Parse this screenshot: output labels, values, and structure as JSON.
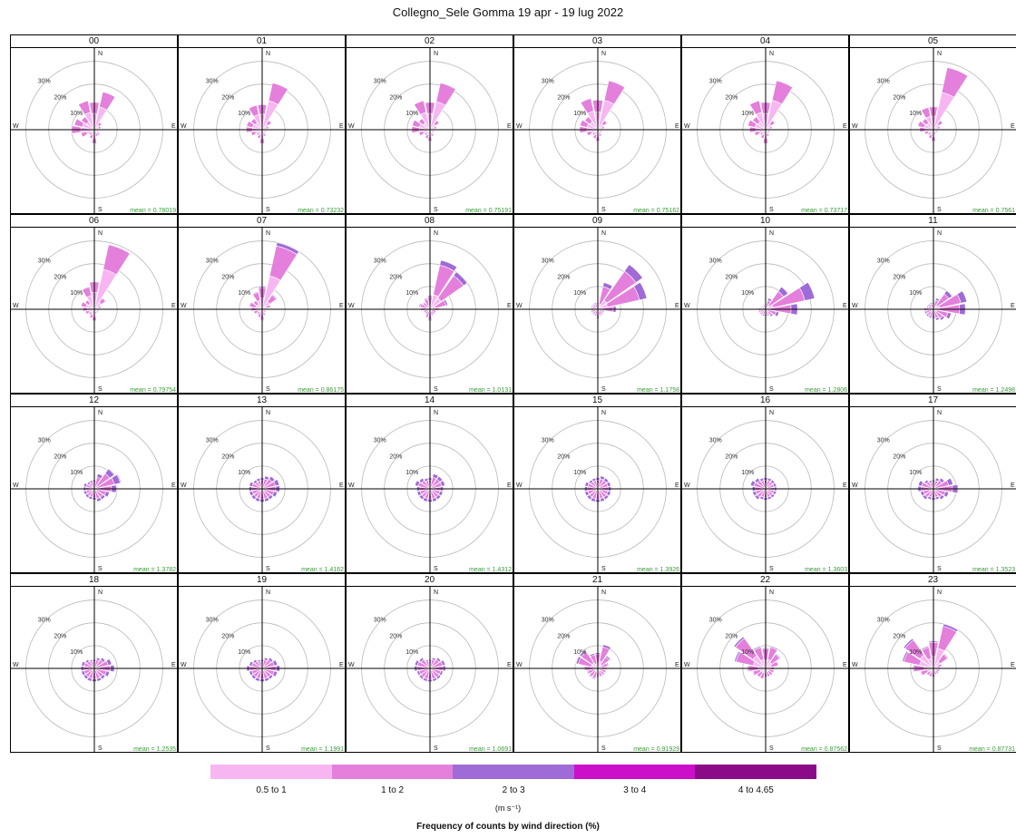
{
  "chart_data": {
    "type": "wind-rose",
    "title": "Collegno_Sele Gomma   19 apr - 19 lug 2022",
    "footer": "Frequency of counts by wind direction (%)",
    "units": "(m s⁻¹)",
    "directions": [
      "N",
      "NNE",
      "NE",
      "ENE",
      "E",
      "ESE",
      "SE",
      "SSE",
      "S",
      "SSW",
      "SW",
      "WSW",
      "W",
      "WNW",
      "NW",
      "NNW"
    ],
    "compass": [
      "N",
      "E",
      "S",
      "W"
    ],
    "rings": [
      10,
      20,
      30
    ],
    "ring_labels": [
      "10%",
      "20%",
      "30%"
    ],
    "axis_max": 35,
    "bins": [
      {
        "label": "0.5 to 1",
        "color": "#f7b6f2"
      },
      {
        "label": "1 to 2",
        "color": "#e47fdc"
      },
      {
        "label": "2 to 3",
        "color": "#9f6bd6"
      },
      {
        "label": "3 to 4",
        "color": "#cc0fc9"
      },
      {
        "label": "4 to 4.65",
        "color": "#8b0a87"
      }
    ],
    "panels": [
      {
        "hour": "00",
        "mean": "mean = 0.78019",
        "totals": [
          12,
          17,
          4,
          3,
          2,
          2,
          3,
          3,
          6,
          4,
          3,
          6,
          10,
          9,
          7,
          13
        ],
        "split": [
          0.6,
          0.4,
          0,
          0,
          0
        ]
      },
      {
        "hour": "01",
        "mean": "mean = 0.73232",
        "totals": [
          11,
          21,
          5,
          3,
          2,
          2,
          2,
          3,
          6,
          4,
          3,
          5,
          7,
          7,
          6,
          11
        ],
        "split": [
          0.62,
          0.38,
          0,
          0,
          0
        ]
      },
      {
        "hour": "02",
        "mean": "mean = 0.75191",
        "totals": [
          12,
          21,
          5,
          3,
          2,
          2,
          2,
          3,
          5,
          4,
          3,
          5,
          8,
          8,
          6,
          13
        ],
        "split": [
          0.6,
          0.4,
          0,
          0,
          0
        ]
      },
      {
        "hour": "03",
        "mean": "mean = 0.75162",
        "totals": [
          13,
          22,
          5,
          3,
          2,
          2,
          2,
          3,
          5,
          4,
          3,
          5,
          8,
          8,
          7,
          14
        ],
        "split": [
          0.6,
          0.4,
          0,
          0,
          0
        ]
      },
      {
        "hour": "04",
        "mean": "mean = 0.73717",
        "totals": [
          12,
          22,
          5,
          3,
          2,
          2,
          2,
          3,
          6,
          4,
          3,
          5,
          7,
          8,
          7,
          13
        ],
        "split": [
          0.6,
          0.4,
          0,
          0,
          0
        ]
      },
      {
        "hour": "05",
        "mean": "mean = 0.7561",
        "totals": [
          10,
          28,
          5,
          3,
          2,
          2,
          2,
          2,
          5,
          4,
          3,
          4,
          6,
          7,
          6,
          10
        ],
        "split": [
          0.6,
          0.4,
          0,
          0,
          0
        ]
      },
      {
        "hour": "06",
        "mean": "mean = 0.79754",
        "totals": [
          12,
          29,
          6,
          3,
          2,
          2,
          2,
          2,
          5,
          4,
          3,
          4,
          5,
          6,
          5,
          10
        ],
        "split": [
          0.62,
          0.38,
          0,
          0,
          0
        ]
      },
      {
        "hour": "07",
        "mean": "mean = 0.86175",
        "totals": [
          10,
          30,
          8,
          4,
          2,
          2,
          2,
          3,
          5,
          4,
          3,
          4,
          5,
          6,
          5,
          8
        ],
        "split": [
          0.5,
          0.45,
          0.05,
          0,
          0
        ]
      },
      {
        "hour": "08",
        "mean": "mean = 1.0131",
        "totals": [
          6,
          22,
          20,
          8,
          4,
          3,
          3,
          3,
          5,
          4,
          3,
          3,
          4,
          5,
          4,
          5
        ],
        "split": [
          0.3,
          0.6,
          0.1,
          0,
          0
        ]
      },
      {
        "hour": "09",
        "mean": "mean = 1.1758",
        "totals": [
          3,
          12,
          24,
          22,
          8,
          3,
          3,
          3,
          4,
          3,
          3,
          3,
          3,
          3,
          3,
          3
        ],
        "split": [
          0.2,
          0.65,
          0.15,
          0,
          0
        ]
      },
      {
        "hour": "10",
        "mean": "mean = 1.2806",
        "totals": [
          2,
          5,
          12,
          22,
          14,
          6,
          4,
          3,
          3,
          3,
          3,
          3,
          3,
          2,
          2,
          2
        ],
        "split": [
          0.15,
          0.65,
          0.2,
          0,
          0
        ]
      },
      {
        "hour": "11",
        "mean": "mean = 1.2498",
        "totals": [
          3,
          5,
          10,
          15,
          14,
          8,
          6,
          5,
          4,
          4,
          4,
          4,
          4,
          3,
          3,
          3
        ],
        "split": [
          0.18,
          0.64,
          0.18,
          0,
          0
        ]
      },
      {
        "hour": "12",
        "mean": "mean = 1.3782",
        "totals": [
          4,
          7,
          11,
          12,
          10,
          7,
          6,
          6,
          5,
          5,
          5,
          5,
          5,
          5,
          4,
          4
        ],
        "split": [
          0.1,
          0.65,
          0.22,
          0.03,
          0
        ]
      },
      {
        "hour": "13",
        "mean": "mean = 1.4162",
        "totals": [
          5,
          6,
          7,
          8,
          8,
          7,
          6,
          6,
          6,
          6,
          6,
          6,
          6,
          6,
          5,
          5
        ],
        "split": [
          0.1,
          0.65,
          0.22,
          0.03,
          0
        ]
      },
      {
        "hour": "14",
        "mean": "mean = 1.4312",
        "totals": [
          5,
          7,
          7,
          7,
          6,
          6,
          6,
          6,
          6,
          6,
          6,
          6,
          6,
          7,
          6,
          5
        ],
        "split": [
          0.1,
          0.65,
          0.22,
          0.03,
          0
        ]
      },
      {
        "hour": "15",
        "mean": "mean = 1.3926",
        "totals": [
          5,
          6,
          6,
          6,
          6,
          6,
          6,
          6,
          6,
          6,
          6,
          6,
          6,
          6,
          5,
          5
        ],
        "split": [
          0.1,
          0.66,
          0.22,
          0.02,
          0
        ]
      },
      {
        "hour": "16",
        "mean": "mean = 1.3603",
        "totals": [
          5,
          5,
          5,
          5,
          5,
          5,
          5,
          5,
          5,
          5,
          6,
          6,
          6,
          7,
          6,
          5
        ],
        "split": [
          0.1,
          0.66,
          0.22,
          0.02,
          0
        ]
      },
      {
        "hour": "17",
        "mean": "mean = 1.3523",
        "totals": [
          4,
          5,
          6,
          9,
          11,
          7,
          6,
          5,
          5,
          5,
          6,
          6,
          7,
          7,
          5,
          4
        ],
        "split": [
          0.1,
          0.66,
          0.22,
          0.02,
          0
        ]
      },
      {
        "hour": "18",
        "mean": "mean = 1.2535",
        "totals": [
          4,
          5,
          6,
          8,
          9,
          7,
          6,
          6,
          6,
          6,
          6,
          6,
          6,
          6,
          5,
          4
        ],
        "split": [
          0.12,
          0.66,
          0.2,
          0.02,
          0
        ]
      },
      {
        "hour": "19",
        "mean": "mean = 1.1991",
        "totals": [
          4,
          5,
          6,
          7,
          8,
          7,
          6,
          6,
          6,
          6,
          6,
          6,
          7,
          6,
          5,
          4
        ],
        "split": [
          0.12,
          0.66,
          0.2,
          0.02,
          0
        ]
      },
      {
        "hour": "20",
        "mean": "mean = 1.0691",
        "totals": [
          4,
          5,
          6,
          7,
          7,
          6,
          6,
          6,
          6,
          6,
          6,
          6,
          7,
          7,
          6,
          4
        ],
        "split": [
          0.15,
          0.66,
          0.17,
          0.02,
          0
        ]
      },
      {
        "hour": "21",
        "mean": "mean = 0.91929",
        "totals": [
          7,
          11,
          7,
          5,
          4,
          4,
          4,
          4,
          4,
          5,
          5,
          5,
          6,
          10,
          10,
          7
        ],
        "split": [
          0.3,
          0.58,
          0.1,
          0.02,
          0
        ]
      },
      {
        "hour": "22",
        "mean": "mean = 0.87562",
        "totals": [
          9,
          10,
          8,
          6,
          4,
          4,
          4,
          4,
          4,
          5,
          5,
          6,
          8,
          14,
          17,
          10
        ],
        "split": [
          0.4,
          0.55,
          0.05,
          0,
          0
        ]
      },
      {
        "hour": "23",
        "mean": "mean = 0.87731",
        "totals": [
          12,
          20,
          8,
          4,
          3,
          3,
          3,
          3,
          4,
          4,
          4,
          6,
          9,
          14,
          16,
          10
        ],
        "split": [
          0.45,
          0.5,
          0.05,
          0,
          0
        ]
      }
    ]
  }
}
